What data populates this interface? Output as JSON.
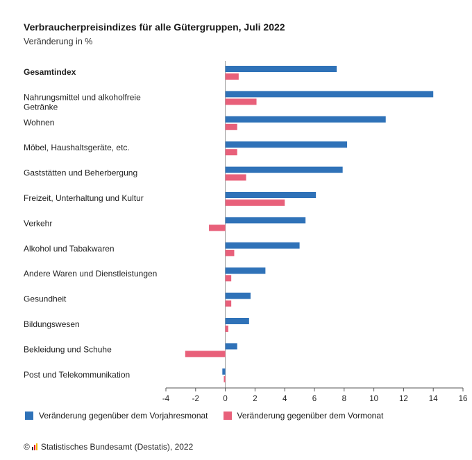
{
  "header": {
    "title": "Verbraucherpreisindizes für alle Gütergruppen, Juli 2022",
    "subtitle": "Veränderung in %"
  },
  "legend": {
    "series1": "Veränderung gegenüber dem Vorjahresmonat",
    "series2": "Veränderung gegenüber dem Vormonat"
  },
  "footer": {
    "copyright_symbol": "©",
    "source": "Statistisches Bundesamt (Destatis), 2022"
  },
  "colors": {
    "series1": "#2f72b8",
    "series2": "#e8607a",
    "axis": "#555555"
  },
  "chart_data": {
    "type": "bar",
    "orientation": "horizontal",
    "title": "Verbraucherpreisindizes für alle Gütergruppen, Juli 2022",
    "subtitle": "Veränderung in %",
    "categories": [
      [
        "Gesamtindex"
      ],
      [
        "Nahrungsmittel und alkoholfreie",
        "Getränke"
      ],
      [
        "Wohnen"
      ],
      [
        "Möbel, Haushaltsgeräte, etc."
      ],
      [
        "Gaststätten und Beherbergung"
      ],
      [
        "Freizeit, Unterhaltung und Kultur"
      ],
      [
        "Verkehr"
      ],
      [
        "Alkohol und Tabakwaren"
      ],
      [
        "Andere Waren und Dienstleistungen"
      ],
      [
        "Gesundheit"
      ],
      [
        "Bildungswesen"
      ],
      [
        "Bekleidung und Schuhe"
      ],
      [
        "Post und Telekommunikation"
      ]
    ],
    "series": [
      {
        "name": "Veränderung gegenüber dem Vorjahresmonat",
        "values": [
          7.5,
          14.0,
          10.8,
          8.2,
          7.9,
          6.1,
          5.4,
          5.0,
          2.7,
          1.7,
          1.6,
          0.8,
          -0.2
        ]
      },
      {
        "name": "Veränderung gegenüber dem Vormonat",
        "values": [
          0.9,
          2.1,
          0.8,
          0.8,
          1.4,
          4.0,
          -1.1,
          0.6,
          0.4,
          0.4,
          0.2,
          -2.7,
          -0.1
        ]
      }
    ],
    "xlim": [
      -4,
      16
    ],
    "xticks": [
      -4,
      -2,
      0,
      2,
      4,
      6,
      8,
      10,
      12,
      14,
      16
    ],
    "legend_position": "bottom"
  }
}
